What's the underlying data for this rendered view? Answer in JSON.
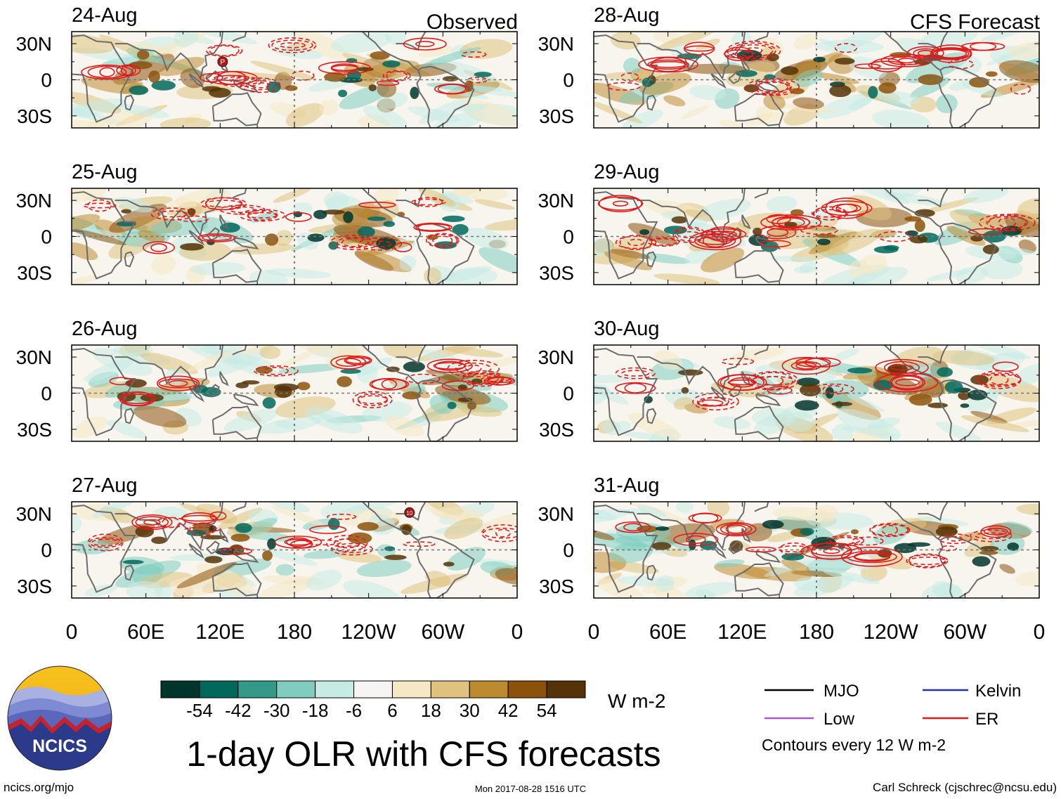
{
  "chart_data": {
    "type": "heatmap",
    "title": "1-day OLR with CFS forecasts",
    "units": "W m-2",
    "column_labels": [
      "Observed",
      "CFS Forecast"
    ],
    "panels": [
      {
        "date": "24-Aug",
        "source": "Observed"
      },
      {
        "date": "25-Aug",
        "source": "Observed"
      },
      {
        "date": "26-Aug",
        "source": "Observed"
      },
      {
        "date": "27-Aug",
        "source": "Observed"
      },
      {
        "date": "28-Aug",
        "source": "CFS Forecast"
      },
      {
        "date": "29-Aug",
        "source": "CFS Forecast"
      },
      {
        "date": "30-Aug",
        "source": "CFS Forecast"
      },
      {
        "date": "31-Aug",
        "source": "CFS Forecast"
      }
    ],
    "x_ticks": [
      "0",
      "60E",
      "120E",
      "180",
      "120W",
      "60W",
      "0"
    ],
    "x_range": [
      0,
      360
    ],
    "y_ticks": [
      "30N",
      "0",
      "30S"
    ],
    "y_range": [
      -40,
      40
    ],
    "colorbar": {
      "tick_labels": [
        "-54",
        "-42",
        "-30",
        "-18",
        "-6",
        "6",
        "18",
        "30",
        "42",
        "54"
      ],
      "colors": [
        "#00352b",
        "#01695c",
        "#339a89",
        "#80cdbf",
        "#c6ebe5",
        "#f6f5f4",
        "#f6e8c4",
        "#dfc27e",
        "#be8a30",
        "#8c520c",
        "#553207"
      ],
      "units_label": "W m-2"
    },
    "legend": [
      {
        "label": "MJO",
        "color": "#000000"
      },
      {
        "label": "Kelvin",
        "color": "#2233aa"
      },
      {
        "label": "Low",
        "color": "#a855d8"
      },
      {
        "label": "ER",
        "color": "#e01b1b"
      }
    ],
    "contour_note": "Contours every 12 W m-2"
  },
  "logo_text": "NCICS",
  "footer": {
    "url": "ncics.org/mjo",
    "timestamp": "Mon 2017-08-28 1516 UTC",
    "author": "Carl Schreck (cjschrec@ncsu.edu)"
  },
  "markers": [
    {
      "panel": 0,
      "label": "P",
      "lon": 122,
      "lat": 15
    },
    {
      "panel": 3,
      "label": "10",
      "lon": 273,
      "lat": 31
    }
  ]
}
